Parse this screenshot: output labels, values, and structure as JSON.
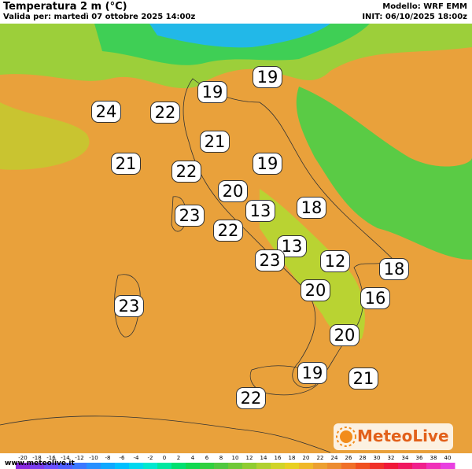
{
  "header": {
    "title": "Temperatura 2 m (°C)",
    "subtitle": "Valida per: martedì 07 ottobre 2025 14:00z",
    "model": "Modello: WRF EMM",
    "init": "INIT: 06/10/2025 18:00z"
  },
  "labels": [
    19,
    19,
    24,
    22,
    21,
    21,
    22,
    19,
    20,
    13,
    18,
    23,
    22,
    13,
    23,
    12,
    18,
    20,
    16,
    23,
    20,
    19,
    21,
    22
  ],
  "colorbar": {
    "ticks": [
      -20,
      -18,
      -16,
      -14,
      -12,
      -10,
      -8,
      -6,
      -4,
      -2,
      0,
      2,
      4,
      6,
      8,
      10,
      12,
      14,
      16,
      18,
      20,
      22,
      24,
      26,
      28,
      30,
      32,
      34,
      36,
      38,
      40
    ],
    "colors": [
      "#8a2be2",
      "#7a3df0",
      "#6a50ff",
      "#5060ff",
      "#3c78ff",
      "#2890ff",
      "#10a8ff",
      "#00c0ff",
      "#00d8f0",
      "#00e8d0",
      "#00e8a0",
      "#00e070",
      "#10d850",
      "#30d040",
      "#50c840",
      "#70c838",
      "#90cc30",
      "#b0d030",
      "#d0d428",
      "#e8d020",
      "#f0b828",
      "#eca030",
      "#ec8c30",
      "#f07028",
      "#f05020",
      "#f03028",
      "#f01838",
      "#f01860",
      "#f0208c",
      "#f030b8",
      "#e840e0"
    ]
  },
  "footer": {
    "url": "www.meteolive.it",
    "logo": "MeteoLive"
  }
}
